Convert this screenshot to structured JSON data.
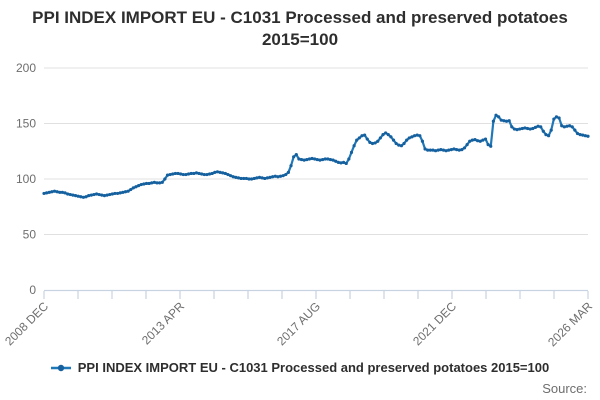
{
  "title": "PPI INDEX IMPORT EU - C1031 Processed and preserved potatoes 2015=100",
  "legend": {
    "marker_icon": "line-with-dot-icon",
    "label": "PPI INDEX IMPORT EU - C1031 Processed and preserved potatoes 2015=100"
  },
  "source_label": "Source:",
  "chart_data": {
    "type": "line",
    "title": "PPI INDEX IMPORT EU - C1031 Processed and preserved potatoes 2015=100",
    "xlabel": "",
    "ylabel": "",
    "ylim": [
      0,
      200
    ],
    "yticks": [
      0,
      50,
      100,
      150,
      200
    ],
    "grid": "horizontal",
    "legend_position": "bottom",
    "x_tick_labels": [
      "2008 DEC",
      "2013 APR",
      "2017 AUG",
      "2021 DEC",
      "2026 MAR"
    ],
    "x_tick_count": 17,
    "labeled_tick_interval": 4,
    "colors": {
      "line": "#1f78b8",
      "marker": "#15609e",
      "grid": "#e0e0e0",
      "axis": "#c8d3e2",
      "tick_text": "#6e6e6e",
      "title_text": "#2e2e2e"
    },
    "series": [
      {
        "name": "PPI INDEX IMPORT EU - C1031 Processed and preserved potatoes 2015=100",
        "frequency": "monthly",
        "start": "2008 DEC",
        "end": "2026 MAR",
        "values": [
          87,
          87.5,
          88,
          88.5,
          89,
          88.5,
          88,
          88,
          87.5,
          86.5,
          86,
          85.5,
          85,
          84.5,
          84,
          83.5,
          84,
          85,
          85.5,
          86,
          86.5,
          86,
          85.5,
          85,
          85.5,
          86,
          86.5,
          87,
          87,
          87.5,
          88,
          88.5,
          89,
          90.5,
          92,
          93,
          94,
          95,
          95.5,
          96,
          96,
          96.5,
          97,
          96.5,
          96.5,
          97,
          100,
          103.5,
          104,
          104.5,
          105,
          105,
          104.5,
          104,
          104,
          104.5,
          105,
          105,
          105.5,
          105,
          104.5,
          104,
          104,
          104.5,
          105,
          106,
          106.5,
          106,
          105.5,
          105,
          104,
          103,
          102,
          101.5,
          101,
          100.5,
          100.5,
          100.5,
          100,
          100,
          100.5,
          101,
          101.5,
          101,
          100.5,
          101,
          101.5,
          102,
          102.5,
          102,
          102.5,
          103,
          104,
          106,
          112,
          120,
          122,
          118,
          117.5,
          117,
          117.5,
          118,
          118.5,
          118,
          117.5,
          117,
          117.5,
          118,
          118,
          117.5,
          117,
          116,
          115,
          114.5,
          115,
          114,
          118,
          124,
          130,
          135,
          137,
          139,
          139.5,
          136,
          133,
          132,
          132.5,
          134,
          137,
          140,
          141.5,
          140,
          138,
          135,
          132,
          130.5,
          130,
          132,
          135,
          137,
          138,
          139,
          139.5,
          139,
          134,
          127,
          126,
          126,
          126,
          125.5,
          126,
          126.5,
          126,
          125.5,
          126,
          126.5,
          127,
          126.5,
          126,
          126.5,
          128,
          131,
          134,
          135,
          135.5,
          134.5,
          134,
          135,
          136,
          131,
          129.5,
          152,
          157.5,
          156,
          153,
          152.5,
          152,
          152.5,
          147,
          145,
          144.5,
          145,
          145.5,
          146,
          145.5,
          145,
          145.5,
          146.5,
          147.5,
          147,
          143,
          140,
          139,
          144,
          154,
          156,
          155,
          148,
          147,
          147.5,
          148,
          147,
          144,
          141,
          140,
          139.5,
          139,
          138.5
        ]
      }
    ]
  }
}
